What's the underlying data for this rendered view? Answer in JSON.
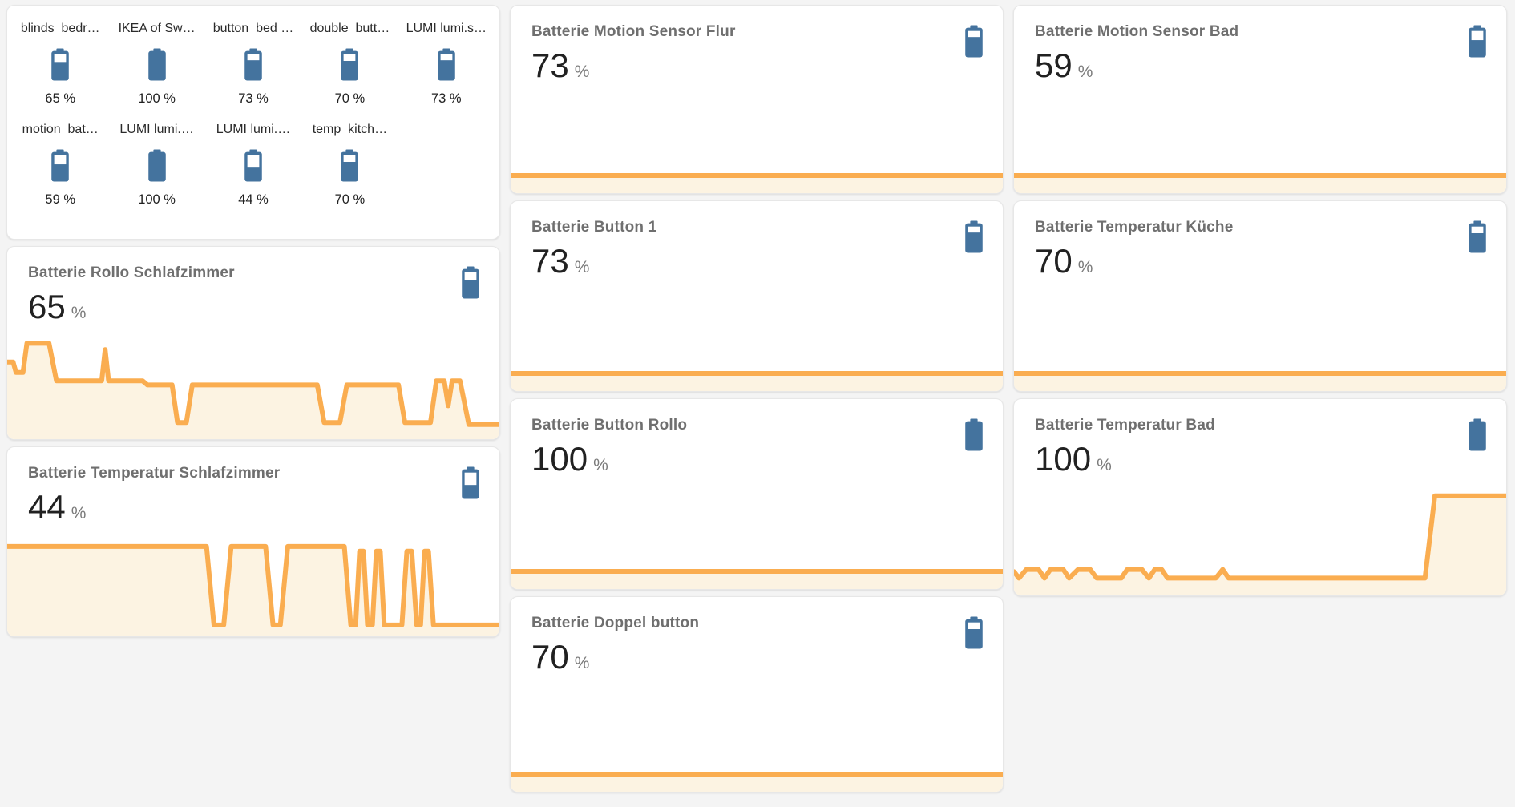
{
  "colors": {
    "page_background": "#f4f4f4",
    "card_background": "#ffffff",
    "battery_icon_blue": "#44739e",
    "graph_line_orange": "#faad50",
    "graph_fill_cream": "#fcf3e2",
    "title_gray": "#6f6f6f",
    "value_black": "#212121"
  },
  "glance": {
    "items": [
      {
        "name": "blinds_bedr…",
        "state": "65 %",
        "level": 65
      },
      {
        "name": "IKEA of Sw…",
        "state": "100 %",
        "level": 100
      },
      {
        "name": "button_bed …",
        "state": "73 %",
        "level": 73
      },
      {
        "name": "double_butt…",
        "state": "70 %",
        "level": 70
      },
      {
        "name": "LUMI lumi.s…",
        "state": "73 %",
        "level": 73
      },
      {
        "name": "motion_bat…",
        "state": "59 %",
        "level": 59
      },
      {
        "name": "LUMI lumi.…",
        "state": "100 %",
        "level": 100
      },
      {
        "name": "LUMI lumi.…",
        "state": "44 %",
        "level": 44
      },
      {
        "name": "temp_kitch…",
        "state": "70 %",
        "level": 70
      }
    ]
  },
  "cards": [
    {
      "title": "Batterie Rollo Schlafzimmer",
      "value": "65",
      "unit": "%",
      "level": 65
    },
    {
      "title": "Batterie Temperatur Schlafzimmer",
      "value": "44",
      "unit": "%",
      "level": 44
    },
    {
      "title": "Batterie Motion Sensor Flur",
      "value": "73",
      "unit": "%",
      "level": 73
    },
    {
      "title": "Batterie Button 1",
      "value": "73",
      "unit": "%",
      "level": 73
    },
    {
      "title": "Batterie Button Rollo",
      "value": "100",
      "unit": "%",
      "level": 100
    },
    {
      "title": "Batterie Doppel button",
      "value": "70",
      "unit": "%",
      "level": 70
    },
    {
      "title": "Batterie Motion Sensor Bad",
      "value": "59",
      "unit": "%",
      "level": 59
    },
    {
      "title": "Batterie Temperatur Küche",
      "value": "70",
      "unit": "%",
      "level": 70
    },
    {
      "title": "Batterie Temperatur Bad",
      "value": "100",
      "unit": "%",
      "level": 100
    }
  ],
  "chart_data": [
    {
      "type": "area",
      "title": "Batterie Rollo Schlafzimmer history",
      "unit": "%",
      "current": 65,
      "coords_note": "x = % of card width, y = % of chart height from top",
      "points": [
        [
          0,
          26
        ],
        [
          1.2,
          26
        ],
        [
          1.8,
          36
        ],
        [
          3.2,
          36
        ],
        [
          4,
          8
        ],
        [
          8.5,
          8
        ],
        [
          10,
          44
        ],
        [
          19.2,
          44
        ],
        [
          19.9,
          14
        ],
        [
          20.6,
          44
        ],
        [
          27.5,
          44
        ],
        [
          28.5,
          48
        ],
        [
          33.5,
          48
        ],
        [
          34.6,
          84
        ],
        [
          36.4,
          84
        ],
        [
          37.6,
          48
        ],
        [
          63,
          48
        ],
        [
          64.4,
          84
        ],
        [
          67.6,
          84
        ],
        [
          69,
          48
        ],
        [
          79.5,
          48
        ],
        [
          80.8,
          84
        ],
        [
          86,
          84
        ],
        [
          87.2,
          44
        ],
        [
          88.8,
          44
        ],
        [
          89.6,
          68
        ],
        [
          90.4,
          44
        ],
        [
          92,
          44
        ],
        [
          93.8,
          86
        ],
        [
          100,
          86
        ]
      ]
    },
    {
      "type": "area",
      "title": "Batterie Temperatur Schlafzimmer history",
      "unit": "%",
      "current": 44,
      "points": [
        [
          0,
          5
        ],
        [
          40.5,
          5
        ],
        [
          42,
          88
        ],
        [
          44,
          88
        ],
        [
          45.5,
          5
        ],
        [
          52.5,
          5
        ],
        [
          54,
          88
        ],
        [
          55.5,
          88
        ],
        [
          57,
          5
        ],
        [
          68.5,
          5
        ],
        [
          69.8,
          88
        ],
        [
          70.8,
          88
        ],
        [
          71.6,
          10
        ],
        [
          72.4,
          10
        ],
        [
          73.2,
          88
        ],
        [
          74.2,
          88
        ],
        [
          75,
          10
        ],
        [
          75.8,
          10
        ],
        [
          76.6,
          88
        ],
        [
          80.2,
          88
        ],
        [
          81.2,
          10
        ],
        [
          82.2,
          10
        ],
        [
          83.2,
          88
        ],
        [
          84,
          88
        ],
        [
          84.8,
          10
        ],
        [
          85.6,
          10
        ],
        [
          86.6,
          88
        ],
        [
          100,
          88
        ]
      ]
    },
    {
      "type": "area",
      "title": "Batterie Motion Sensor Flur history",
      "unit": "%",
      "current": 73,
      "points": [
        [
          0,
          50
        ],
        [
          100,
          50
        ]
      ]
    },
    {
      "type": "area",
      "title": "Batterie Button 1 history",
      "unit": "%",
      "current": 73,
      "points": [
        [
          0,
          50
        ],
        [
          100,
          50
        ]
      ]
    },
    {
      "type": "area",
      "title": "Batterie Button Rollo history",
      "unit": "%",
      "current": 100,
      "points": [
        [
          0,
          50
        ],
        [
          100,
          50
        ]
      ]
    },
    {
      "type": "area",
      "title": "Batterie Doppel button history",
      "unit": "%",
      "current": 70,
      "points": [
        [
          0,
          50
        ],
        [
          100,
          50
        ]
      ]
    },
    {
      "type": "area",
      "title": "Batterie Motion Sensor Bad history",
      "unit": "%",
      "current": 59,
      "points": [
        [
          0,
          50
        ],
        [
          100,
          50
        ]
      ]
    },
    {
      "type": "area",
      "title": "Batterie Temperatur Küche history",
      "unit": "%",
      "current": 70,
      "points": [
        [
          0,
          50
        ],
        [
          100,
          50
        ]
      ]
    },
    {
      "type": "area",
      "title": "Batterie Temperatur Bad history",
      "unit": "%",
      "current": 100,
      "points": [
        [
          0,
          78
        ],
        [
          1,
          84
        ],
        [
          2.5,
          76
        ],
        [
          5,
          76
        ],
        [
          6.2,
          84
        ],
        [
          7.4,
          76
        ],
        [
          10,
          76
        ],
        [
          11.2,
          84
        ],
        [
          13,
          76
        ],
        [
          15.5,
          76
        ],
        [
          16.8,
          84
        ],
        [
          21.8,
          84
        ],
        [
          23,
          76
        ],
        [
          26,
          76
        ],
        [
          27.4,
          84
        ],
        [
          28.6,
          76
        ],
        [
          30,
          76
        ],
        [
          31.2,
          84
        ],
        [
          41,
          84
        ],
        [
          42.4,
          76
        ],
        [
          43.6,
          84
        ],
        [
          83.5,
          84
        ],
        [
          85.5,
          8
        ],
        [
          100,
          8
        ]
      ]
    }
  ]
}
